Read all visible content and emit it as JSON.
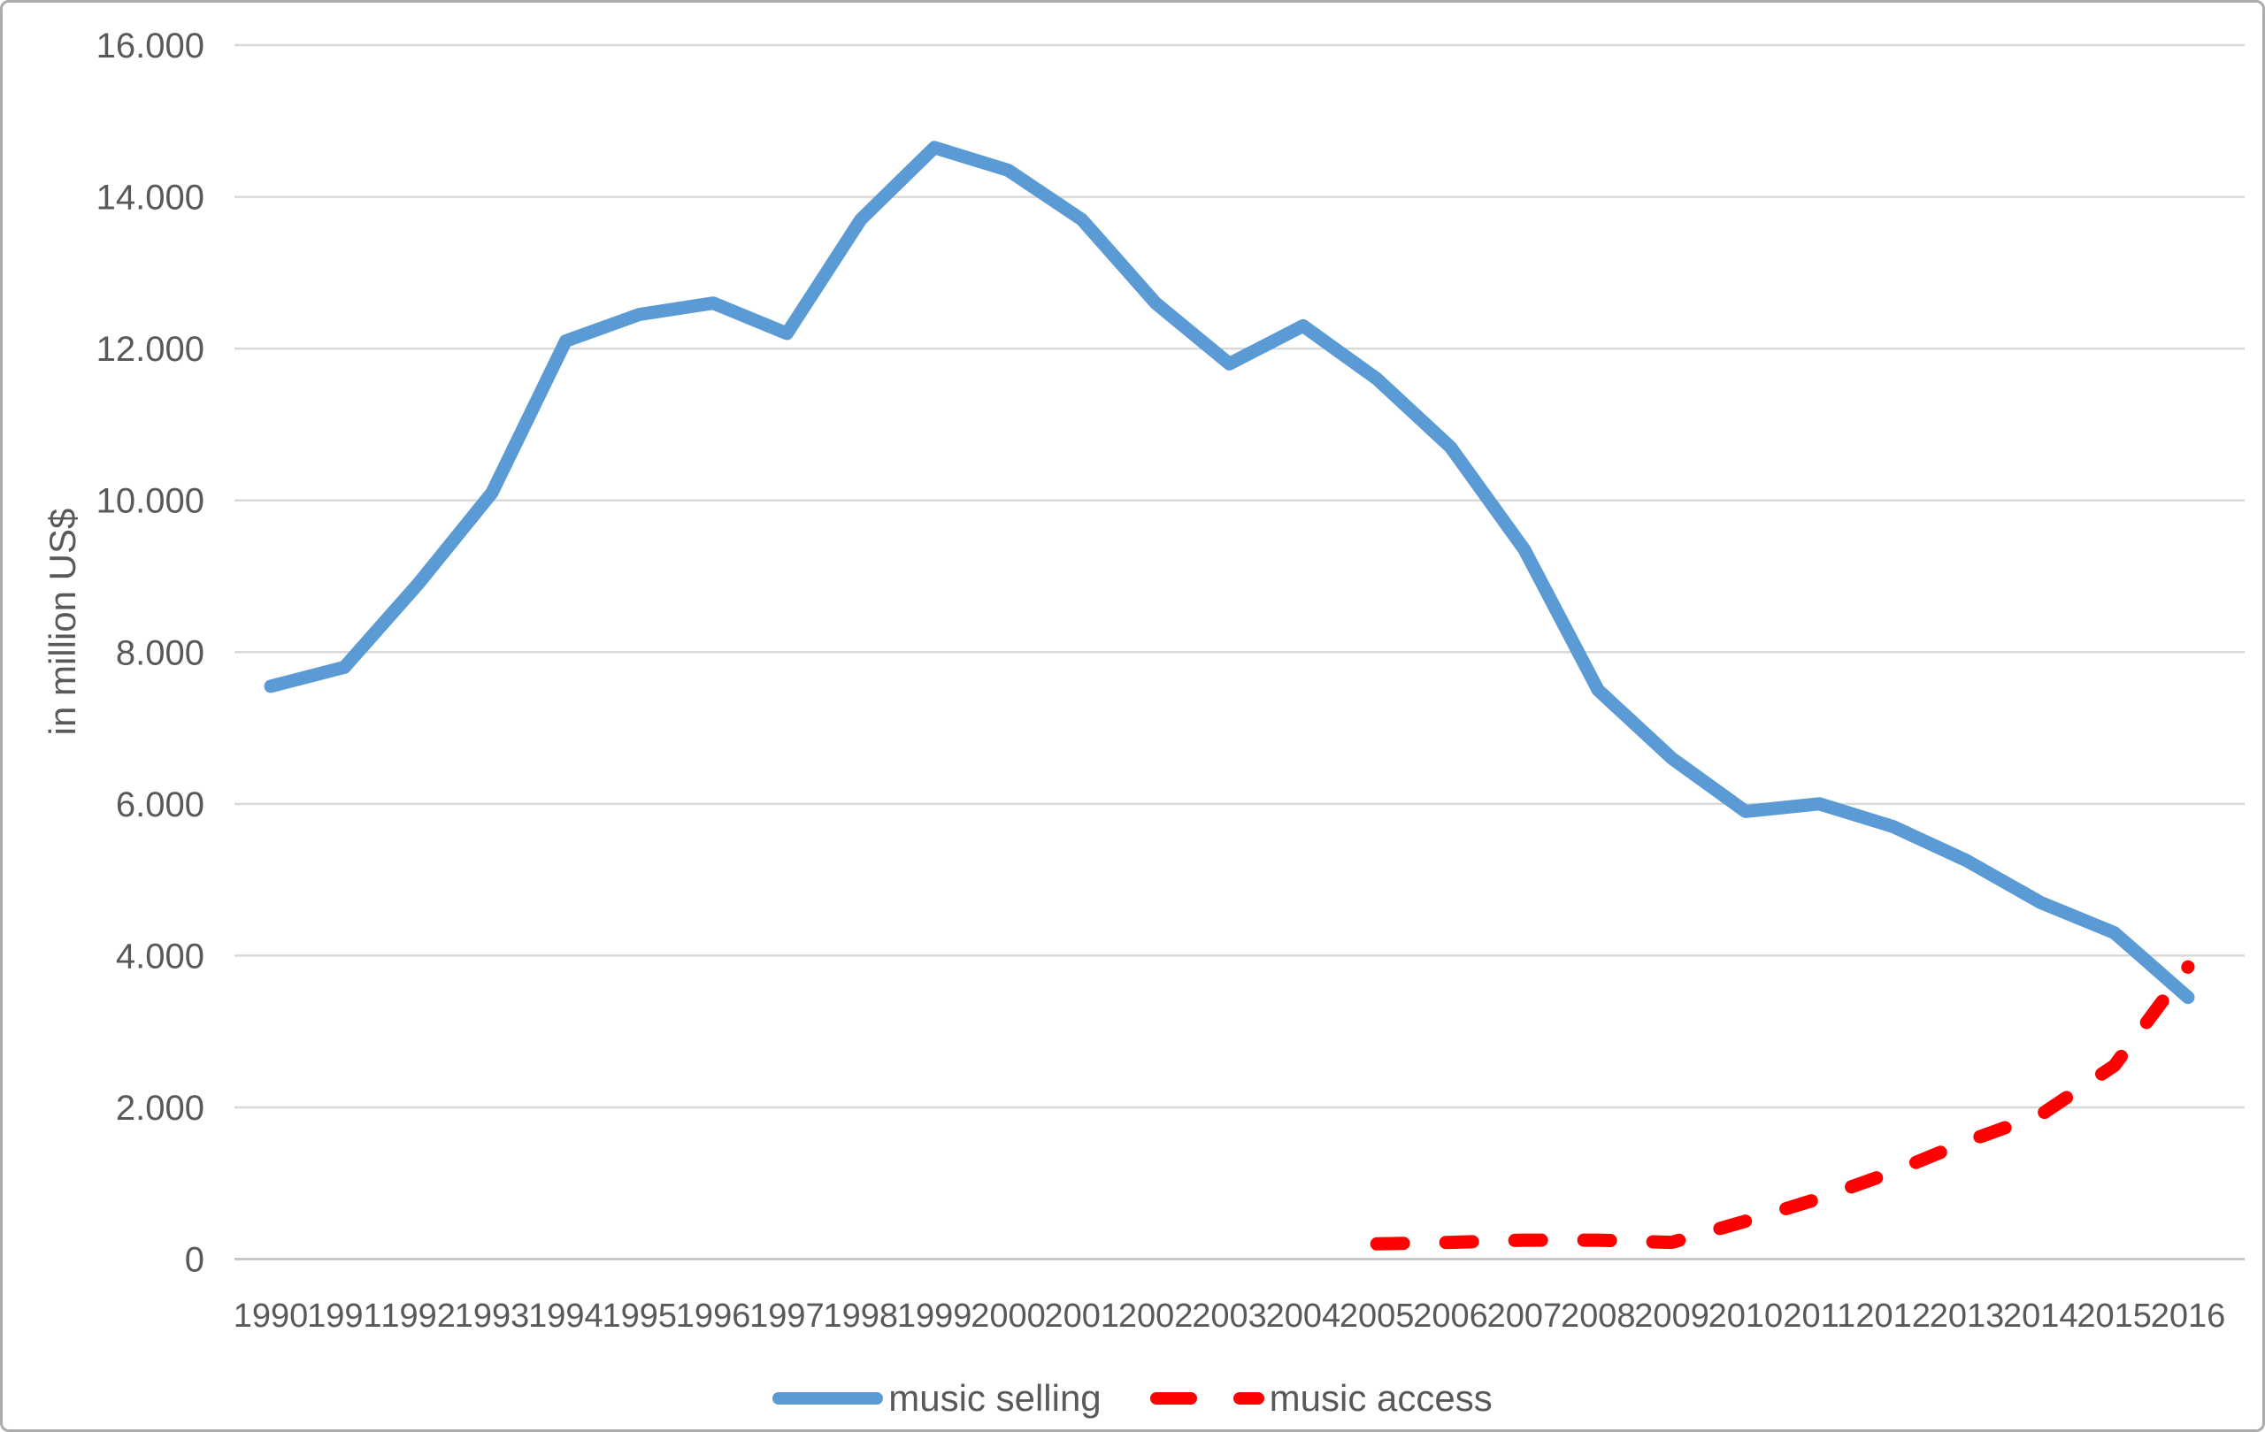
{
  "chart_data": {
    "type": "line",
    "title": "",
    "xlabel": "",
    "ylabel": "in million US$",
    "x": [
      "1990",
      "1991",
      "1992",
      "1993",
      "1994",
      "1995",
      "1996",
      "1997",
      "1998",
      "1999",
      "2000",
      "2001",
      "2002",
      "2003",
      "2004",
      "2005",
      "2006",
      "2007",
      "2008",
      "2009",
      "2010",
      "2011",
      "2012",
      "2013",
      "2014",
      "2015",
      "2016"
    ],
    "series": [
      {
        "name": "music selling",
        "color": "#5B9BD5",
        "line_style": "solid",
        "values": [
          7550,
          7800,
          8900,
          10100,
          12100,
          12450,
          12600,
          12200,
          13700,
          14650,
          14350,
          13700,
          12600,
          11800,
          12300,
          11600,
          10700,
          9350,
          7500,
          6600,
          5900,
          6000,
          5700,
          5250,
          4700,
          4300,
          3450
        ]
      },
      {
        "name": "music access",
        "color": "#FF0000",
        "line_style": "dashed",
        "values": [
          null,
          null,
          null,
          null,
          null,
          null,
          null,
          null,
          null,
          null,
          null,
          null,
          null,
          null,
          null,
          200,
          220,
          250,
          250,
          220,
          500,
          800,
          1150,
          1550,
          1900,
          2550,
          3850
        ]
      }
    ],
    "ylim": [
      0,
      16000
    ],
    "ytick_step": 2000,
    "ytick_labels": [
      "0",
      "2.000",
      "4.000",
      "6.000",
      "8.000",
      "10.000",
      "12.000",
      "14.000",
      "16.000"
    ],
    "grid": true,
    "legend_position": "bottom-center"
  },
  "colors": {
    "text": "#595959",
    "gridline": "#D9D9D9",
    "axis_line": "#BFBFBF",
    "frame_border": "#ABABAB",
    "background": "#FFFFFF"
  }
}
